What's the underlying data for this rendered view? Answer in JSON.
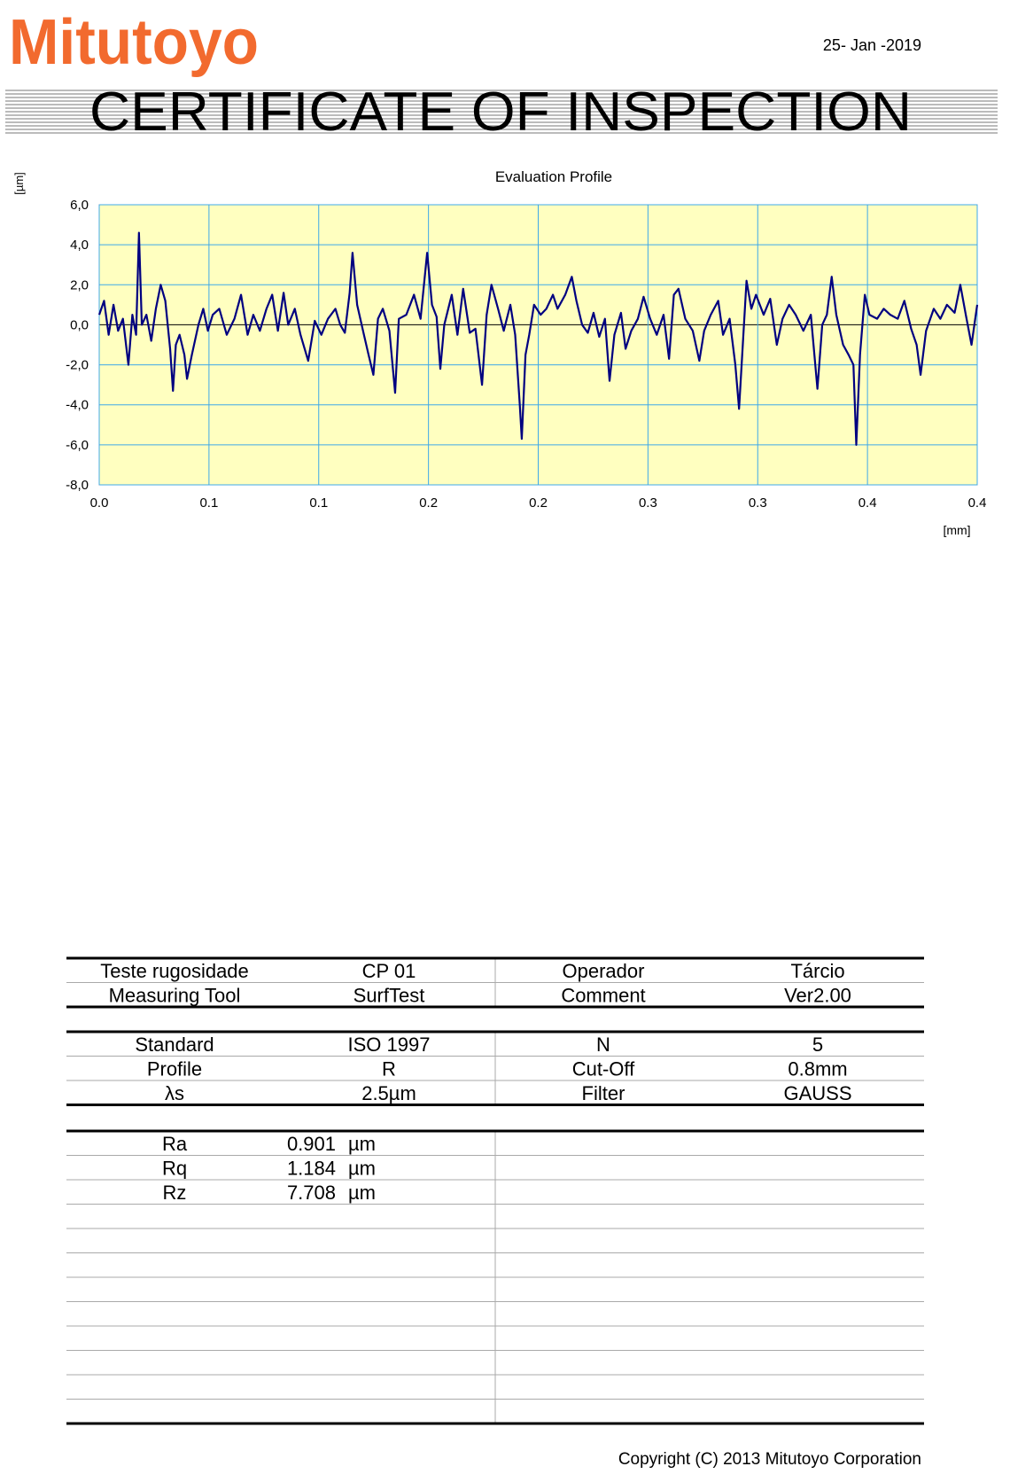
{
  "header": {
    "logo": "Mitutoyo",
    "date": "25- Jan -2019",
    "title": "CERTIFICATE OF INSPECTION"
  },
  "chart_data": {
    "type": "line",
    "title": "Evaluation Profile",
    "x_label": "[mm]",
    "y_label": "[µm]",
    "color": "#000080",
    "background": "#ffffc0",
    "grid": true,
    "xlim": [
      0,
      0.4
    ],
    "ylim": [
      -8,
      6
    ],
    "xticks": [
      {
        "value": 0,
        "label": "0.0"
      },
      {
        "value": 0.05,
        "label": "0.1"
      },
      {
        "value": 0.1,
        "label": "0.1"
      },
      {
        "value": 0.15,
        "label": "0.2"
      },
      {
        "value": 0.2,
        "label": "0.2"
      },
      {
        "value": 0.25,
        "label": "0.3"
      },
      {
        "value": 0.3,
        "label": "0.3"
      },
      {
        "value": 0.35,
        "label": "0.4"
      },
      {
        "value": 0.4,
        "label": "0.4"
      }
    ],
    "yticks": [
      {
        "value": 6,
        "label": "6,0"
      },
      {
        "value": 4,
        "label": "4,0"
      },
      {
        "value": 2,
        "label": "2,0"
      },
      {
        "value": 0,
        "label": "0,0"
      },
      {
        "value": -2,
        "label": "-2,0"
      },
      {
        "value": -4,
        "label": "-4,0"
      },
      {
        "value": -6,
        "label": "-6,0"
      },
      {
        "value": -8,
        "label": "-8,0"
      }
    ],
    "x": [
      0,
      0.0022,
      0.0043,
      0.0065,
      0.0086,
      0.0108,
      0.0133,
      0.0151,
      0.0168,
      0.0181,
      0.0194,
      0.0215,
      0.0237,
      0.0258,
      0.028,
      0.0301,
      0.0323,
      0.0336,
      0.0349,
      0.0366,
      0.0388,
      0.04,
      0.0422,
      0.0452,
      0.0474,
      0.0495,
      0.0517,
      0.0547,
      0.0581,
      0.0616,
      0.0646,
      0.0676,
      0.0702,
      0.0732,
      0.0762,
      0.0788,
      0.0814,
      0.084,
      0.0861,
      0.0891,
      0.0917,
      0.0952,
      0.0982,
      0.1012,
      0.1042,
      0.1076,
      0.1098,
      0.1119,
      0.1141,
      0.1154,
      0.1175,
      0.1206,
      0.1227,
      0.1249,
      0.127,
      0.1292,
      0.1322,
      0.1348,
      0.1365,
      0.1399,
      0.1434,
      0.1464,
      0.1494,
      0.1516,
      0.1537,
      0.1554,
      0.1572,
      0.1606,
      0.1632,
      0.1658,
      0.1688,
      0.1714,
      0.1744,
      0.1765,
      0.1787,
      0.1817,
      0.1843,
      0.1873,
      0.1895,
      0.1916,
      0.1925,
      0.1942,
      0.1959,
      0.1981,
      0.2011,
      0.2037,
      0.2067,
      0.2088,
      0.2123,
      0.2153,
      0.2174,
      0.22,
      0.2226,
      0.2252,
      0.2278,
      0.2304,
      0.2325,
      0.2347,
      0.2377,
      0.2398,
      0.2424,
      0.2454,
      0.248,
      0.251,
      0.254,
      0.2571,
      0.2596,
      0.2618,
      0.2639,
      0.267,
      0.2704,
      0.2734,
      0.2756,
      0.2786,
      0.282,
      0.2842,
      0.2872,
      0.2898,
      0.2915,
      0.2932,
      0.2949,
      0.2971,
      0.2992,
      0.3027,
      0.3057,
      0.3087,
      0.3113,
      0.3143,
      0.3173,
      0.3208,
      0.3242,
      0.3272,
      0.3294,
      0.3315,
      0.3337,
      0.3358,
      0.3389,
      0.3414,
      0.3436,
      0.3449,
      0.3466,
      0.3488,
      0.3509,
      0.3544,
      0.3574,
      0.3604,
      0.3638,
      0.3668,
      0.3699,
      0.3724,
      0.3742,
      0.3767,
      0.3802,
      0.3832,
      0.3862,
      0.3897,
      0.3923,
      0.3948,
      0.3974,
      0.4
    ],
    "values": [
      0.5,
      1.2,
      -0.5,
      1.0,
      -0.3,
      0.3,
      -2.0,
      0.5,
      -0.5,
      4.6,
      0.0,
      0.5,
      -0.8,
      0.8,
      2.0,
      1.2,
      -1.2,
      -3.3,
      -1.0,
      -0.5,
      -1.5,
      -2.7,
      -1.5,
      0.0,
      0.8,
      -0.3,
      0.5,
      0.8,
      -0.5,
      0.3,
      1.5,
      -0.5,
      0.5,
      -0.3,
      0.8,
      1.5,
      -0.3,
      1.6,
      0.0,
      0.8,
      -0.5,
      -1.8,
      0.2,
      -0.5,
      0.3,
      0.8,
      0.0,
      -0.4,
      1.6,
      3.6,
      1.0,
      -0.5,
      -1.5,
      -2.5,
      0.3,
      0.8,
      -0.3,
      -3.4,
      0.3,
      0.5,
      1.5,
      0.3,
      3.6,
      1.0,
      0.4,
      -2.2,
      0.0,
      1.5,
      -0.5,
      1.8,
      -0.4,
      -0.2,
      -3.0,
      0.5,
      2.0,
      0.8,
      -0.3,
      1.0,
      -0.5,
      -4.0,
      -5.7,
      -1.5,
      -0.5,
      1.0,
      0.5,
      0.8,
      1.5,
      0.8,
      1.5,
      2.4,
      1.2,
      0.0,
      -0.4,
      0.6,
      -0.6,
      0.3,
      -2.8,
      -0.5,
      0.6,
      -1.2,
      -0.3,
      0.3,
      1.4,
      0.3,
      -0.5,
      0.5,
      -1.7,
      1.5,
      1.8,
      0.3,
      -0.3,
      -1.8,
      -0.3,
      0.5,
      1.2,
      -0.5,
      0.3,
      -2.0,
      -4.2,
      -1.0,
      2.2,
      0.8,
      1.5,
      0.5,
      1.3,
      -1.0,
      0.3,
      1.0,
      0.5,
      -0.3,
      0.5,
      -3.2,
      0.0,
      0.5,
      2.4,
      0.5,
      -1.0,
      -1.5,
      -2.0,
      -6.0,
      -1.5,
      1.5,
      0.5,
      0.3,
      0.8,
      0.5,
      0.3,
      1.2,
      -0.2,
      -1.0,
      -2.5,
      -0.3,
      0.8,
      0.3,
      1.0,
      0.6,
      2.0,
      0.5,
      -1.0,
      1.0
    ]
  },
  "info_table": {
    "rows": [
      [
        "Teste rugosidade",
        "CP 01",
        "Operador",
        "Tárcio"
      ],
      [
        "Measuring Tool",
        "SurfTest",
        "Comment",
        "Ver2.00"
      ]
    ]
  },
  "settings_table": {
    "rows": [
      [
        "Standard",
        "ISO 1997",
        "N",
        "5"
      ],
      [
        "Profile",
        "R",
        "Cut-Off",
        "0.8mm"
      ],
      [
        "λs",
        "2.5µm",
        "Filter",
        "GAUSS"
      ]
    ]
  },
  "results_table": {
    "rows": [
      {
        "name": "Ra",
        "value": "0.901",
        "unit": "µm"
      },
      {
        "name": "Rq",
        "value": "1.184",
        "unit": "µm"
      },
      {
        "name": "Rz",
        "value": "7.708",
        "unit": "µm"
      }
    ]
  },
  "footer": {
    "copyright": "Copyright (C) 2013 Mitutoyo Corporation"
  }
}
